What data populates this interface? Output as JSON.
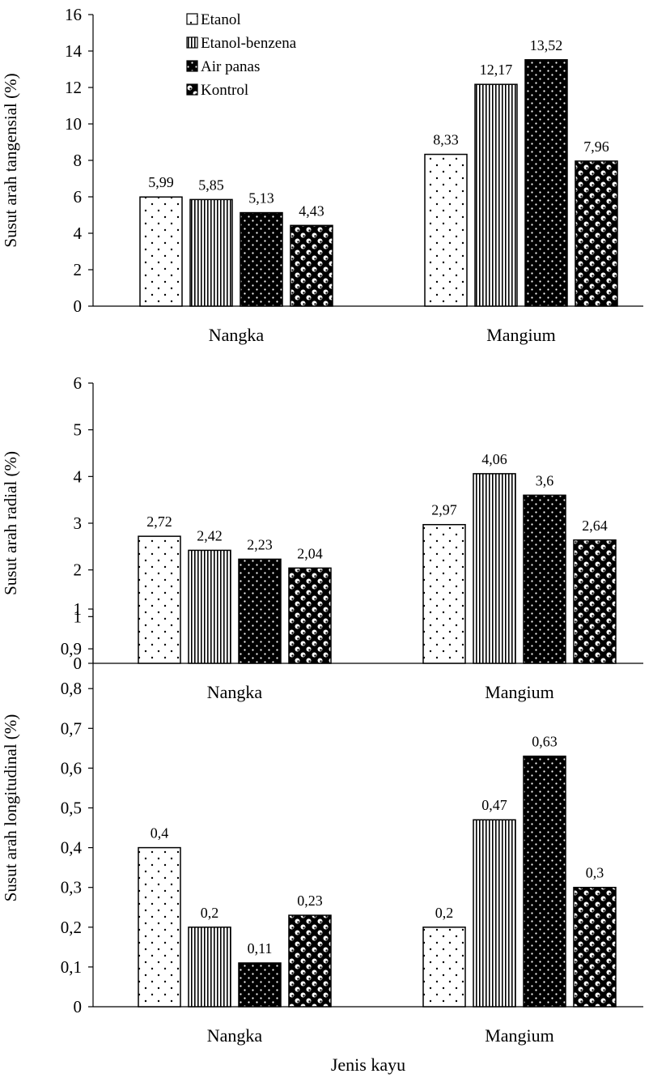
{
  "chart_data": [
    {
      "type": "bar",
      "categories": [
        "Nangka",
        "Mangium"
      ],
      "series": [
        {
          "name": "Etanol",
          "values": [
            5.99,
            8.33
          ],
          "labels": [
            "5,99",
            "8,33"
          ]
        },
        {
          "name": "Etanol-benzena",
          "values": [
            5.85,
            12.17
          ],
          "labels": [
            "5,85",
            "12,17"
          ]
        },
        {
          "name": "Air panas",
          "values": [
            5.13,
            13.52
          ],
          "labels": [
            "5,13",
            "13,52"
          ]
        },
        {
          "name": "Kontrol",
          "values": [
            4.43,
            7.96
          ],
          "labels": [
            "4,43",
            "7,96"
          ]
        }
      ],
      "ylabel": "Susut arah tangensial (%)",
      "ylim": [
        0,
        16
      ],
      "yticks": [
        0,
        2,
        4,
        6,
        8,
        10,
        12,
        14,
        16
      ],
      "ytick_labels": [
        "0",
        "2",
        "4",
        "6",
        "8",
        "10",
        "12",
        "14",
        "16"
      ],
      "legend": "top-left",
      "grid": false
    },
    {
      "type": "bar",
      "categories": [
        "Nangka",
        "Mangium"
      ],
      "series": [
        {
          "name": "Etanol",
          "values": [
            2.72,
            2.97
          ],
          "labels": [
            "2,72",
            "2,97"
          ]
        },
        {
          "name": "Etanol-benzena",
          "values": [
            2.42,
            4.06
          ],
          "labels": [
            "2,42",
            "4,06"
          ]
        },
        {
          "name": "Air panas",
          "values": [
            2.23,
            3.6
          ],
          "labels": [
            "2,23",
            "3,6"
          ]
        },
        {
          "name": "Kontrol",
          "values": [
            2.04,
            2.64
          ],
          "labels": [
            "2,04",
            "2,64"
          ]
        }
      ],
      "ylabel": "Susut arah radial  (%)",
      "ylim": [
        0,
        6
      ],
      "yticks": [
        0,
        1,
        2,
        3,
        4,
        5,
        6
      ],
      "ytick_labels": [
        "0",
        "1",
        "2",
        "3",
        "4",
        "5",
        "6"
      ],
      "grid": false
    },
    {
      "type": "bar",
      "categories": [
        "Nangka",
        "Mangium"
      ],
      "series": [
        {
          "name": "Etanol",
          "values": [
            0.4,
            0.2
          ],
          "labels": [
            "0,4",
            "0,2"
          ]
        },
        {
          "name": "Etanol-benzena",
          "values": [
            0.2,
            0.47
          ],
          "labels": [
            "0,2",
            "0,47"
          ]
        },
        {
          "name": "Air panas",
          "values": [
            0.11,
            0.63
          ],
          "labels": [
            "0,11",
            "0,63"
          ]
        },
        {
          "name": "Kontrol",
          "values": [
            0.23,
            0.3
          ],
          "labels": [
            "0,23",
            "0,3"
          ]
        }
      ],
      "ylabel": "Susut arah longitudinal (%)",
      "xlabel": "Jenis kayu",
      "ylim": [
        0,
        1
      ],
      "yticks": [
        0,
        0.1,
        0.2,
        0.3,
        0.4,
        0.5,
        0.6,
        0.7,
        0.8,
        0.9,
        1
      ],
      "ytick_labels": [
        "0",
        "0,1",
        "0,2",
        "0,3",
        "0,4",
        "0,5",
        "0,6",
        "0,7",
        "0,8",
        "0,9",
        "1"
      ],
      "grid": false
    }
  ],
  "styles": {
    "bar_fill": "#ffffff",
    "bar_stroke": "#000000",
    "dark_fill": "#000000",
    "pattern_names": [
      "dotted",
      "vertical-stripes",
      "white-dots-on-black",
      "checker-spheres"
    ]
  }
}
